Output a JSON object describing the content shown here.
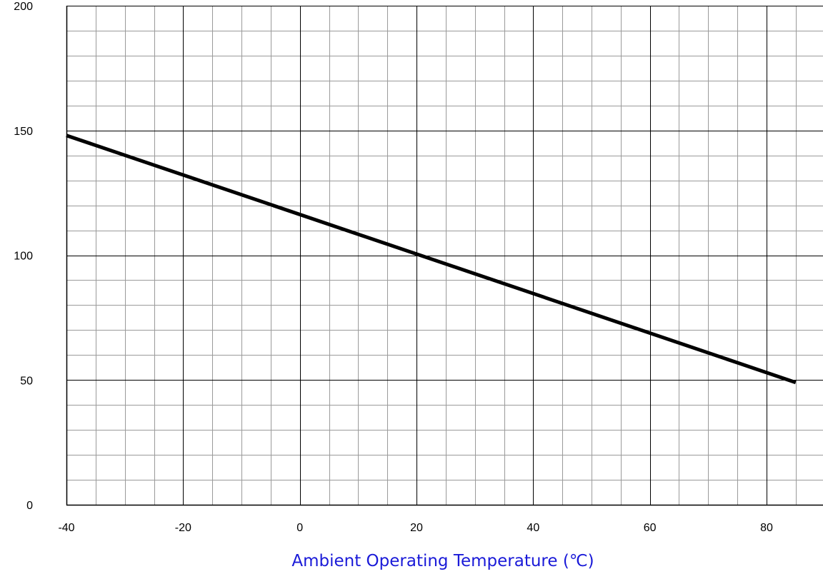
{
  "chart_data": {
    "type": "line",
    "title": "",
    "xlabel": "Ambient Operating Temperature (℃)",
    "ylabel": "",
    "xlim": [
      -40,
      85
    ],
    "ylim": [
      0,
      200
    ],
    "x_ticks": [
      -40,
      -20,
      0,
      20,
      40,
      60,
      80
    ],
    "y_ticks": [
      0,
      50,
      100,
      150,
      200
    ],
    "x_tick_labels": [
      "-40",
      "-20",
      "0",
      "20",
      "40",
      "60",
      "80"
    ],
    "y_tick_labels": [
      "0",
      "50",
      "100",
      "150",
      "200"
    ],
    "x_minor_step": 5,
    "y_minor_step": 10,
    "grid": true,
    "series": [
      {
        "x": [
          -40,
          85
        ],
        "y": [
          148,
          49
        ]
      }
    ],
    "colors": {
      "series_line": "#000000",
      "major_grid": "#000000",
      "minor_grid": "#9a9a9a",
      "axis_title": "#1a1ad8"
    }
  }
}
